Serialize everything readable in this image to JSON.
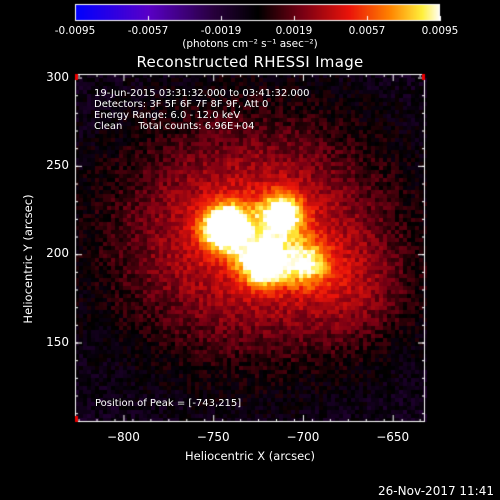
{
  "chart_data": {
    "type": "heatmap",
    "title": "Reconstructed RHESSI Image",
    "xlabel": "Heliocentric X (arcsec)",
    "ylabel": "Heliocentric Y (arcsec)",
    "xlim": [
      -827,
      -632
    ],
    "ylim": [
      105,
      302
    ],
    "xticks": [
      -800,
      -750,
      -700,
      -650
    ],
    "yticks": [
      150,
      200,
      250,
      300
    ],
    "colorbar": {
      "ticks": [
        "-0.0095",
        "-0.0057",
        "-0.0019",
        "0.0019",
        "0.0057",
        "0.0095"
      ],
      "units": "(photons cm⁻² s⁻¹ asec⁻²)",
      "range": [
        -0.0095,
        0.0095
      ]
    },
    "annotations": [
      "19-Jun-2015 03:31:32.000 to 03:41:32.000",
      "Detectors: 3F 5F 6F 7F 8F 9F, Att 0",
      "Energy Range: 6.0 - 12.0 keV",
      "Clean     Total counts: 6.96E+04"
    ],
    "peak_text": "Position of Peak = [-743,215]",
    "sources": [
      {
        "x": -743,
        "y": 215,
        "intensity": 1.0
      },
      {
        "x": -722,
        "y": 195,
        "intensity": 0.85
      },
      {
        "x": -712,
        "y": 222,
        "intensity": 0.72
      },
      {
        "x": -698,
        "y": 195,
        "intensity": 0.5
      }
    ]
  },
  "footer": "26-Nov-2017 11:41"
}
